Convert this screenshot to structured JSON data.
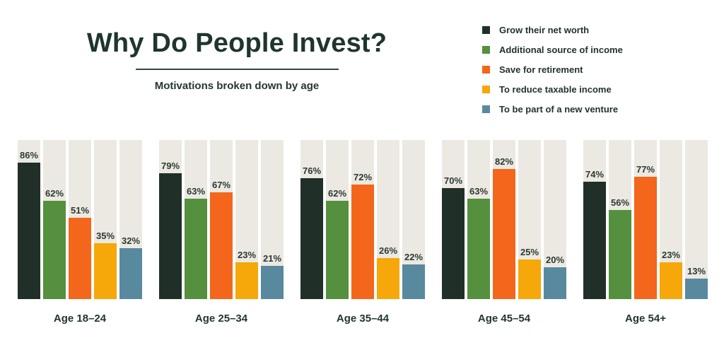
{
  "header": {
    "title": "Why Do People Invest?",
    "subtitle": "Motivations broken down by age"
  },
  "legend": {
    "position": "top-right",
    "items": [
      {
        "label": "Grow their net worth",
        "color": "#203029"
      },
      {
        "label": "Additional source of income",
        "color": "#54903d"
      },
      {
        "label": "Save for retirement",
        "color": "#f3661b"
      },
      {
        "label": "To reduce taxable income",
        "color": "#f6a70a"
      },
      {
        "label": "To be part of a new venture",
        "color": "#58899f"
      }
    ]
  },
  "chart_data": {
    "type": "bar",
    "title": "Why Do People Invest?",
    "subtitle": "Motivations broken down by age",
    "categories": [
      "Age 18–24",
      "Age 25–34",
      "Age 35–44",
      "Age 45–54",
      "Age 54+"
    ],
    "series": [
      {
        "name": "Grow their net worth",
        "color": "#203029",
        "values": [
          86,
          79,
          76,
          70,
          74
        ]
      },
      {
        "name": "Additional source of income",
        "color": "#54903d",
        "values": [
          62,
          63,
          62,
          63,
          56
        ]
      },
      {
        "name": "Save for retirement",
        "color": "#f3661b",
        "values": [
          51,
          67,
          72,
          82,
          77
        ]
      },
      {
        "name": "To reduce taxable income",
        "color": "#f6a70a",
        "values": [
          35,
          23,
          26,
          25,
          23
        ]
      },
      {
        "name": "To be part of a new venture",
        "color": "#58899f",
        "values": [
          32,
          21,
          22,
          20,
          13
        ]
      }
    ],
    "value_suffix": "%",
    "ylim": [
      0,
      100
    ],
    "grid": false,
    "legend_position": "top-right",
    "track_color": "#ece9e2",
    "background_color": "#ffffff"
  }
}
